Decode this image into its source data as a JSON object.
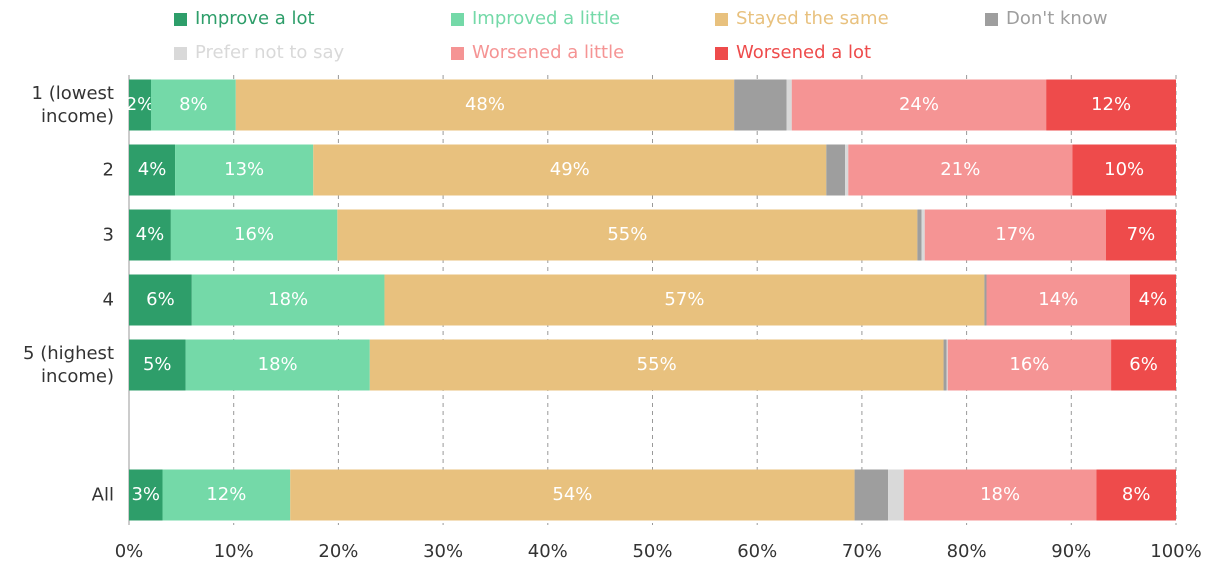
{
  "chart_data": {
    "type": "stacked-bar-horizontal",
    "categories": [
      "1 (lowest income)",
      "2",
      "3",
      "4",
      "5 (highest income)",
      "All"
    ],
    "series": [
      {
        "name": "Improve a lot",
        "color": "#2e9e6a",
        "values": [
          2.1,
          4.4,
          4.0,
          6.0,
          5.4,
          3.2
        ],
        "value_labels": [
          "2%",
          "4%",
          "4%",
          "6%",
          "5%",
          "3%"
        ]
      },
      {
        "name": "Improved a little",
        "color": "#74d9a8",
        "values": [
          8.1,
          13.2,
          15.9,
          18.4,
          17.6,
          12.2
        ],
        "value_labels": [
          "8%",
          "13%",
          "16%",
          "18%",
          "18%",
          "12%"
        ]
      },
      {
        "name": "Stayed the same",
        "color": "#e8c17e",
        "values": [
          47.6,
          49.0,
          55.4,
          57.3,
          54.8,
          53.9
        ],
        "value_labels": [
          "48%",
          "49%",
          "55%",
          "57%",
          "55%",
          "54%"
        ]
      },
      {
        "name": "Don't know",
        "color": "#9e9e9e",
        "values": [
          5.0,
          1.8,
          0.4,
          0.2,
          0.3,
          3.2
        ]
      },
      {
        "name": "Prefer not to say",
        "color": "#d9d9d9",
        "values": [
          0.5,
          0.3,
          0.3,
          0,
          0.1,
          1.5
        ]
      },
      {
        "name": "Worsened a little",
        "color": "#f59494",
        "values": [
          24.3,
          21.4,
          17.3,
          13.7,
          15.6,
          18.4
        ],
        "value_labels": [
          "24%",
          "21%",
          "17%",
          "14%",
          "16%",
          "18%"
        ]
      },
      {
        "name": "Worsened a lot",
        "color": "#ee4b4b",
        "values": [
          12.4,
          9.9,
          6.7,
          4.4,
          6.2,
          7.6
        ],
        "value_labels": [
          "12%",
          "10%",
          "7%",
          "4%",
          "6%",
          "8%"
        ]
      }
    ],
    "xlim": [
      0,
      100
    ],
    "xticks": [
      {
        "value": 0,
        "label": "0%"
      },
      {
        "value": 10,
        "label": "10%"
      },
      {
        "value": 20,
        "label": "20%"
      },
      {
        "value": 30,
        "label": "30%"
      },
      {
        "value": 40,
        "label": "40%"
      },
      {
        "value": 50,
        "label": "50%"
      },
      {
        "value": 60,
        "label": "60%"
      },
      {
        "value": 70,
        "label": "70%"
      },
      {
        "value": 80,
        "label": "80%"
      },
      {
        "value": 90,
        "label": "90%"
      },
      {
        "value": 100,
        "label": "100%"
      }
    ],
    "grid": true,
    "legend": "top"
  }
}
